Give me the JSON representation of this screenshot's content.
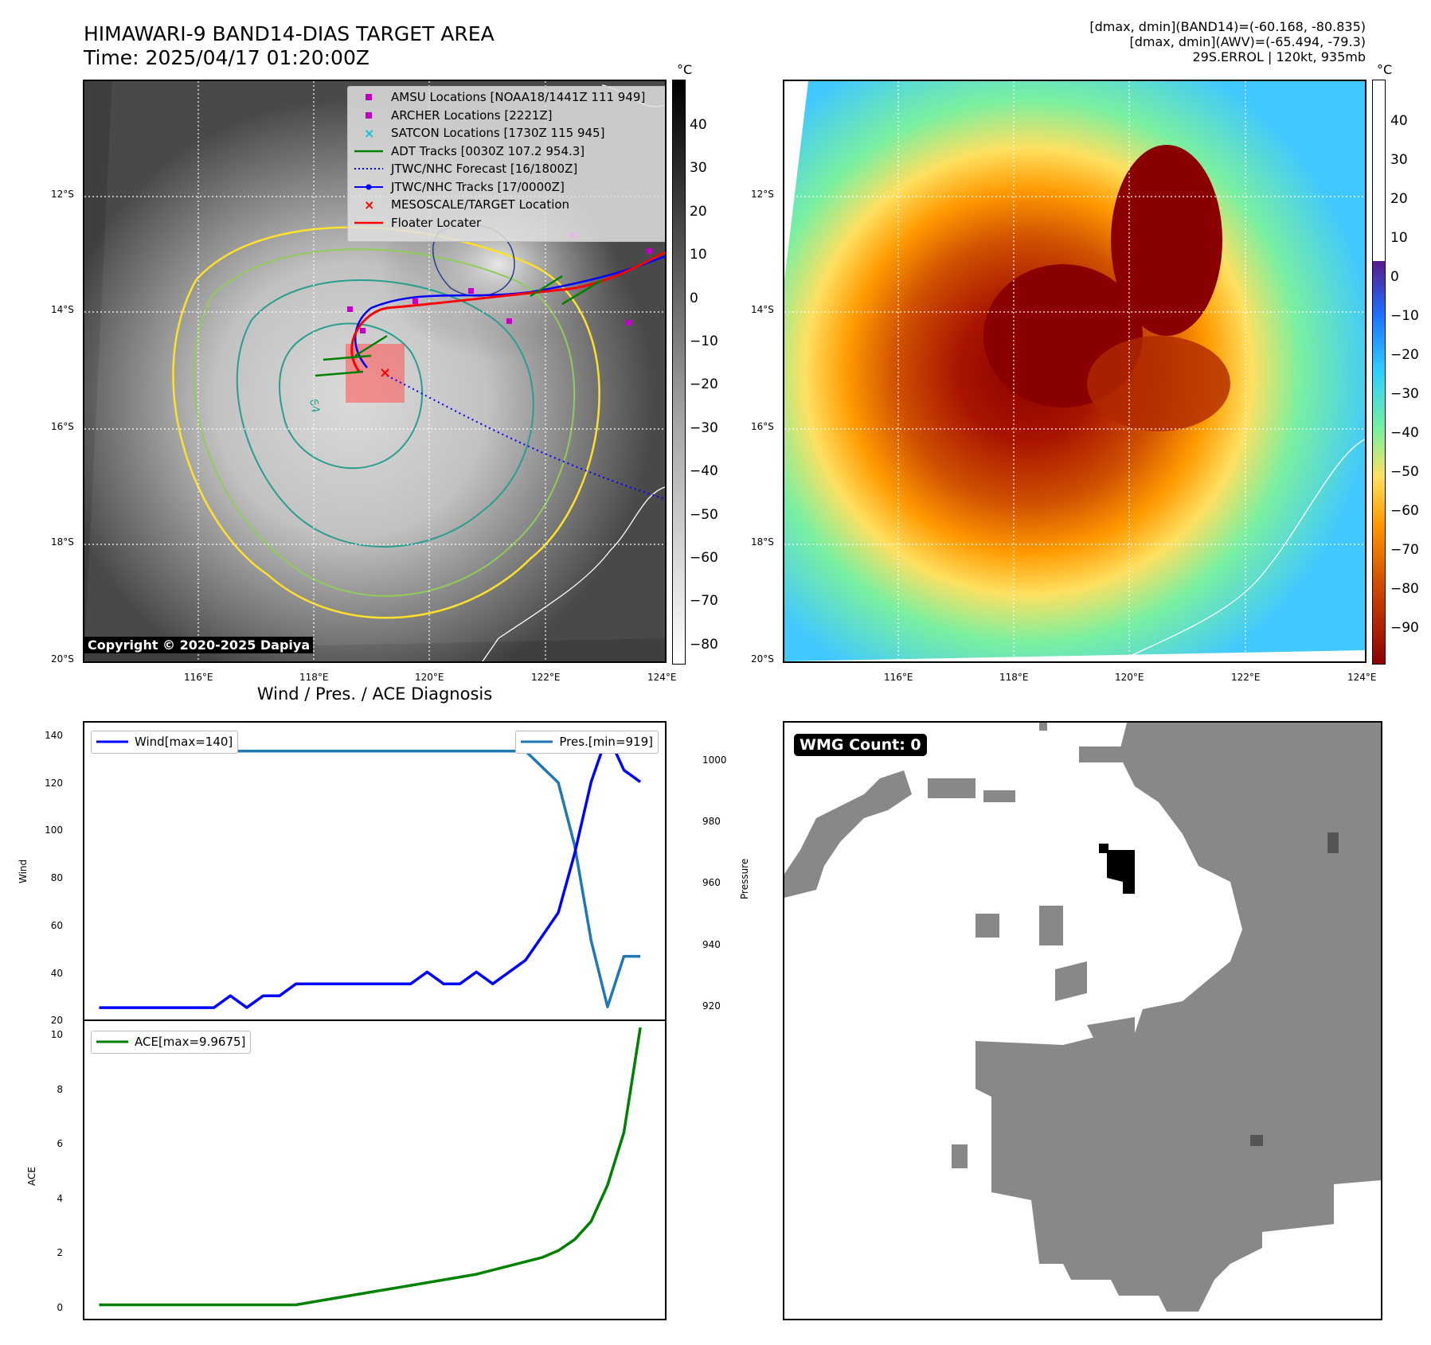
{
  "header": {
    "title_line1": "HIMAWARI-9 BAND14-DIAS TARGET AREA",
    "title_line2": "Time: 2025/04/17 01:20:00Z",
    "info_line1": "[dmax, dmin](BAND14)=(-60.168, -80.835)",
    "info_line2": "[dmax, dmin](AWV)=(-65.494, -79.3)",
    "info_line3": "29S.ERROL | 120kt, 935mb"
  },
  "map": {
    "lat_labels": [
      "12°S",
      "14°S",
      "16°S",
      "18°S",
      "20°S"
    ],
    "lon_labels": [
      "116°E",
      "118°E",
      "120°E",
      "122°E",
      "124°E"
    ],
    "copyright": "Copyright © 2020-2025 Dapiya",
    "contour_label": "64",
    "unit": "°C",
    "colors": {
      "gray_dark": "#303030",
      "gray_light": "#f0f0f0",
      "contour_yellow": "#ffe02a",
      "contour_green": "#8fcc5a",
      "contour_teal": "#2a9d8f",
      "contour_navy": "#283c8a"
    }
  },
  "legend": {
    "items": [
      {
        "label": "AMSU Locations [NOAA18/1441Z 111 949]",
        "key": "square",
        "color": "#c000c0"
      },
      {
        "label": "ARCHER Locations [2221Z]",
        "key": "square",
        "color": "#c000c0"
      },
      {
        "label": "SATCON Locations [1730Z 115 945]",
        "key": "x",
        "color": "#17becf"
      },
      {
        "label": "ADT Tracks [0030Z 107.2 954.3]",
        "key": "line",
        "color": "#008000"
      },
      {
        "label": "JTWC/NHC Forecast [16/1800Z]",
        "key": "dotted",
        "color": "#0000ff"
      },
      {
        "label": "JTWC/NHC Tracks [17/0000Z]",
        "key": "linedot",
        "color": "#0000ff"
      },
      {
        "label": "MESOSCALE/TARGET Location",
        "key": "x",
        "color": "#ff0000"
      },
      {
        "label": "Floater Locater",
        "key": "line",
        "color": "#ff0000"
      }
    ]
  },
  "colorbar_gray": {
    "unit": "°C",
    "ticks": [
      "40",
      "30",
      "20",
      "10",
      "0",
      "−10",
      "−20",
      "−30",
      "−40",
      "−50",
      "−60",
      "−70",
      "−80"
    ]
  },
  "colorbar_color": {
    "unit": "°C",
    "ticks": [
      "40",
      "30",
      "20",
      "10",
      "0",
      "−10",
      "−20",
      "−30",
      "−40",
      "−50",
      "−60",
      "−70",
      "−80",
      "−90"
    ],
    "colors": [
      "#ffffff",
      "#5a1a8a",
      "#1e6fff",
      "#2fd0ff",
      "#7af0a0",
      "#ffe060",
      "#ff9a00",
      "#d05000",
      "#8a0000"
    ]
  },
  "chart_data": [
    {
      "type": "line",
      "title": "Wind / Pres. / ACE Diagnosis",
      "x": [
        0,
        1,
        2,
        3,
        4,
        5,
        6,
        7,
        8,
        9,
        10,
        11,
        12,
        13,
        14,
        15,
        16,
        17,
        18,
        19,
        20,
        21,
        22,
        23,
        24,
        25,
        26,
        27,
        28,
        29,
        30,
        31,
        32,
        33
      ],
      "series": [
        {
          "name": "Wind[max=140]",
          "axis": "left",
          "color": "#0000ff",
          "values": [
            25,
            25,
            25,
            25,
            25,
            25,
            25,
            25,
            30,
            25,
            30,
            30,
            35,
            35,
            35,
            35,
            35,
            35,
            35,
            35,
            40,
            35,
            35,
            40,
            35,
            40,
            45,
            55,
            65,
            90,
            120,
            140,
            125,
            120
          ]
        },
        {
          "name": "Pres.[min=919]",
          "axis": "right",
          "color": "#1f77b4",
          "values": [
            1000,
            1000,
            1000,
            1000,
            1000,
            1000,
            1000,
            1000,
            1000,
            1000,
            1000,
            1000,
            1000,
            1000,
            1000,
            1000,
            1000,
            1000,
            1000,
            1000,
            1000,
            1000,
            1000,
            1000,
            1000,
            1000,
            1000,
            995,
            990,
            970,
            940,
            919,
            935,
            935
          ]
        }
      ],
      "ylabel": "Wind",
      "ylim": [
        20,
        145
      ],
      "yticks": [
        "140",
        "120",
        "100",
        "80",
        "60",
        "40",
        "20"
      ],
      "y2label": "Pressure",
      "y2lim": [
        915,
        1009
      ],
      "y2ticks": [
        "1000",
        "980",
        "960",
        "940",
        "920"
      ]
    },
    {
      "type": "line",
      "x": [
        0,
        1,
        2,
        3,
        4,
        5,
        6,
        7,
        8,
        9,
        10,
        11,
        12,
        13,
        14,
        15,
        16,
        17,
        18,
        19,
        20,
        21,
        22,
        23,
        24,
        25,
        26,
        27,
        28,
        29,
        30,
        31,
        32,
        33
      ],
      "series": [
        {
          "name": "ACE[max=9.9675]",
          "color": "#008000",
          "values": [
            0,
            0,
            0,
            0,
            0,
            0,
            0,
            0,
            0,
            0,
            0,
            0,
            0,
            0.1,
            0.2,
            0.3,
            0.4,
            0.5,
            0.6,
            0.7,
            0.8,
            0.9,
            1.0,
            1.1,
            1.25,
            1.4,
            1.55,
            1.7,
            1.95,
            2.35,
            3.0,
            4.3,
            6.2,
            9.9675
          ]
        }
      ],
      "ylabel": "ACE",
      "ylim": [
        -0.5,
        10.2
      ],
      "yticks": [
        "10",
        "8",
        "6",
        "4",
        "2",
        "0"
      ]
    }
  ],
  "wmg": {
    "badge": "WMG Count: 0"
  }
}
